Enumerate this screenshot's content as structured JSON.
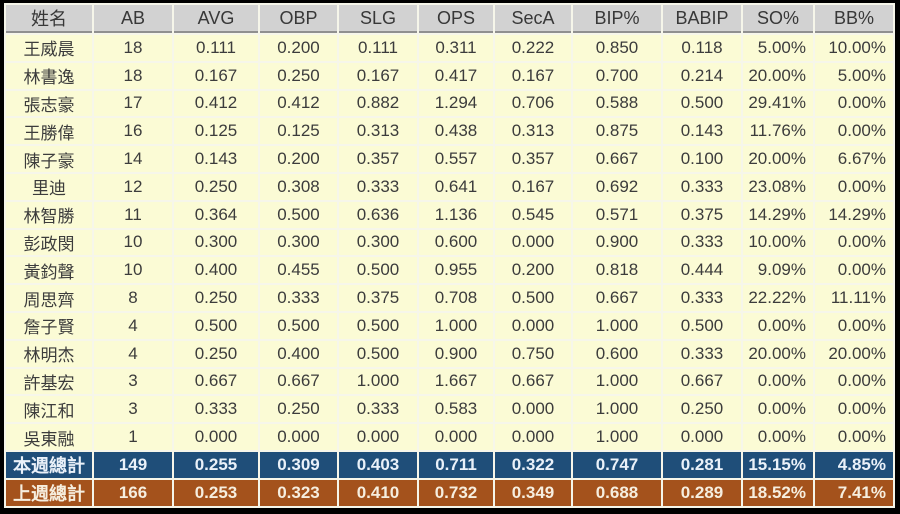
{
  "chart_data": {
    "type": "table",
    "title": "batting-stats-weekly",
    "columns": [
      "姓名",
      "AB",
      "AVG",
      "OBP",
      "SLG",
      "OPS",
      "SecA",
      "BIP%",
      "BABIP",
      "SO%",
      "BB%"
    ],
    "rows": [
      [
        "王威晨",
        "18",
        "0.111",
        "0.200",
        "0.111",
        "0.311",
        "0.222",
        "0.850",
        "0.118",
        "5.00%",
        "10.00%"
      ],
      [
        "林書逸",
        "18",
        "0.167",
        "0.250",
        "0.167",
        "0.417",
        "0.167",
        "0.700",
        "0.214",
        "20.00%",
        "5.00%"
      ],
      [
        "張志豪",
        "17",
        "0.412",
        "0.412",
        "0.882",
        "1.294",
        "0.706",
        "0.588",
        "0.500",
        "29.41%",
        "0.00%"
      ],
      [
        "王勝偉",
        "16",
        "0.125",
        "0.125",
        "0.313",
        "0.438",
        "0.313",
        "0.875",
        "0.143",
        "11.76%",
        "0.00%"
      ],
      [
        "陳子豪",
        "14",
        "0.143",
        "0.200",
        "0.357",
        "0.557",
        "0.357",
        "0.667",
        "0.100",
        "20.00%",
        "6.67%"
      ],
      [
        "里迪",
        "12",
        "0.250",
        "0.308",
        "0.333",
        "0.641",
        "0.167",
        "0.692",
        "0.333",
        "23.08%",
        "0.00%"
      ],
      [
        "林智勝",
        "11",
        "0.364",
        "0.500",
        "0.636",
        "1.136",
        "0.545",
        "0.571",
        "0.375",
        "14.29%",
        "14.29%"
      ],
      [
        "彭政閔",
        "10",
        "0.300",
        "0.300",
        "0.300",
        "0.600",
        "0.000",
        "0.900",
        "0.333",
        "10.00%",
        "0.00%"
      ],
      [
        "黃鈞聲",
        "10",
        "0.400",
        "0.455",
        "0.500",
        "0.955",
        "0.200",
        "0.818",
        "0.444",
        "9.09%",
        "0.00%"
      ],
      [
        "周思齊",
        "8",
        "0.250",
        "0.333",
        "0.375",
        "0.708",
        "0.500",
        "0.667",
        "0.333",
        "22.22%",
        "11.11%"
      ],
      [
        "詹子賢",
        "4",
        "0.500",
        "0.500",
        "0.500",
        "1.000",
        "0.000",
        "1.000",
        "0.500",
        "0.00%",
        "0.00%"
      ],
      [
        "林明杰",
        "4",
        "0.250",
        "0.400",
        "0.500",
        "0.900",
        "0.750",
        "0.600",
        "0.333",
        "20.00%",
        "20.00%"
      ],
      [
        "許基宏",
        "3",
        "0.667",
        "0.667",
        "1.000",
        "1.667",
        "0.667",
        "1.000",
        "0.667",
        "0.00%",
        "0.00%"
      ],
      [
        "陳江和",
        "3",
        "0.333",
        "0.250",
        "0.333",
        "0.583",
        "0.000",
        "1.000",
        "0.250",
        "0.00%",
        "0.00%"
      ],
      [
        "吳東融",
        "1",
        "0.000",
        "0.000",
        "0.000",
        "0.000",
        "0.000",
        "1.000",
        "0.000",
        "0.00%",
        "0.00%"
      ]
    ],
    "summary_rows": [
      {
        "label": "本週總計",
        "values": [
          "149",
          "0.255",
          "0.309",
          "0.403",
          "0.711",
          "0.322",
          "0.747",
          "0.281",
          "15.15%",
          "4.85%"
        ]
      },
      {
        "label": "上週總計",
        "values": [
          "166",
          "0.253",
          "0.323",
          "0.410",
          "0.732",
          "0.349",
          "0.688",
          "0.289",
          "18.52%",
          "7.41%"
        ]
      }
    ],
    "layout": {
      "grid": "on",
      "legend": "none"
    }
  },
  "colors": {
    "outer_border": "#000000",
    "grid_gap": "#F6F6EA",
    "header_bg": "#D2D2D2",
    "header_text": "#383838",
    "row_bg": "#FBFBD5",
    "cell_text": "#3C3C3C",
    "this_week_bg": "#1F4E79",
    "this_week_text": "#EAF1F9",
    "last_week_bg": "#A4521C",
    "last_week_text": "#F6EEDF"
  }
}
